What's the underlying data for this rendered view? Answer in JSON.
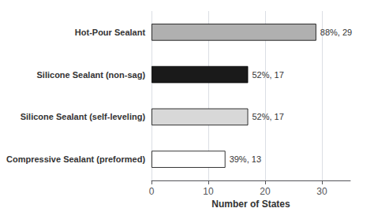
{
  "chart_data": {
    "type": "bar",
    "orientation": "horizontal",
    "xlabel": "Number of States",
    "categories": [
      "Compressive Sealant (preformed)",
      "Silicone Sealant (self-leveling)",
      "Silicone Sealant (non-sag)",
      "Hot-Pour Sealant"
    ],
    "values": [
      13,
      17,
      17,
      29
    ],
    "value_labels": [
      "39%, 13",
      "52%, 17",
      "52%, 17",
      "88%, 29"
    ],
    "data_labels": true,
    "colors": [
      "#ffffff",
      "#d8d8d8",
      "#1a1a1a",
      "#b0b0b0"
    ],
    "xlim": [
      0,
      35
    ],
    "xticks": [
      0,
      10,
      20,
      30
    ],
    "grid": true
  }
}
